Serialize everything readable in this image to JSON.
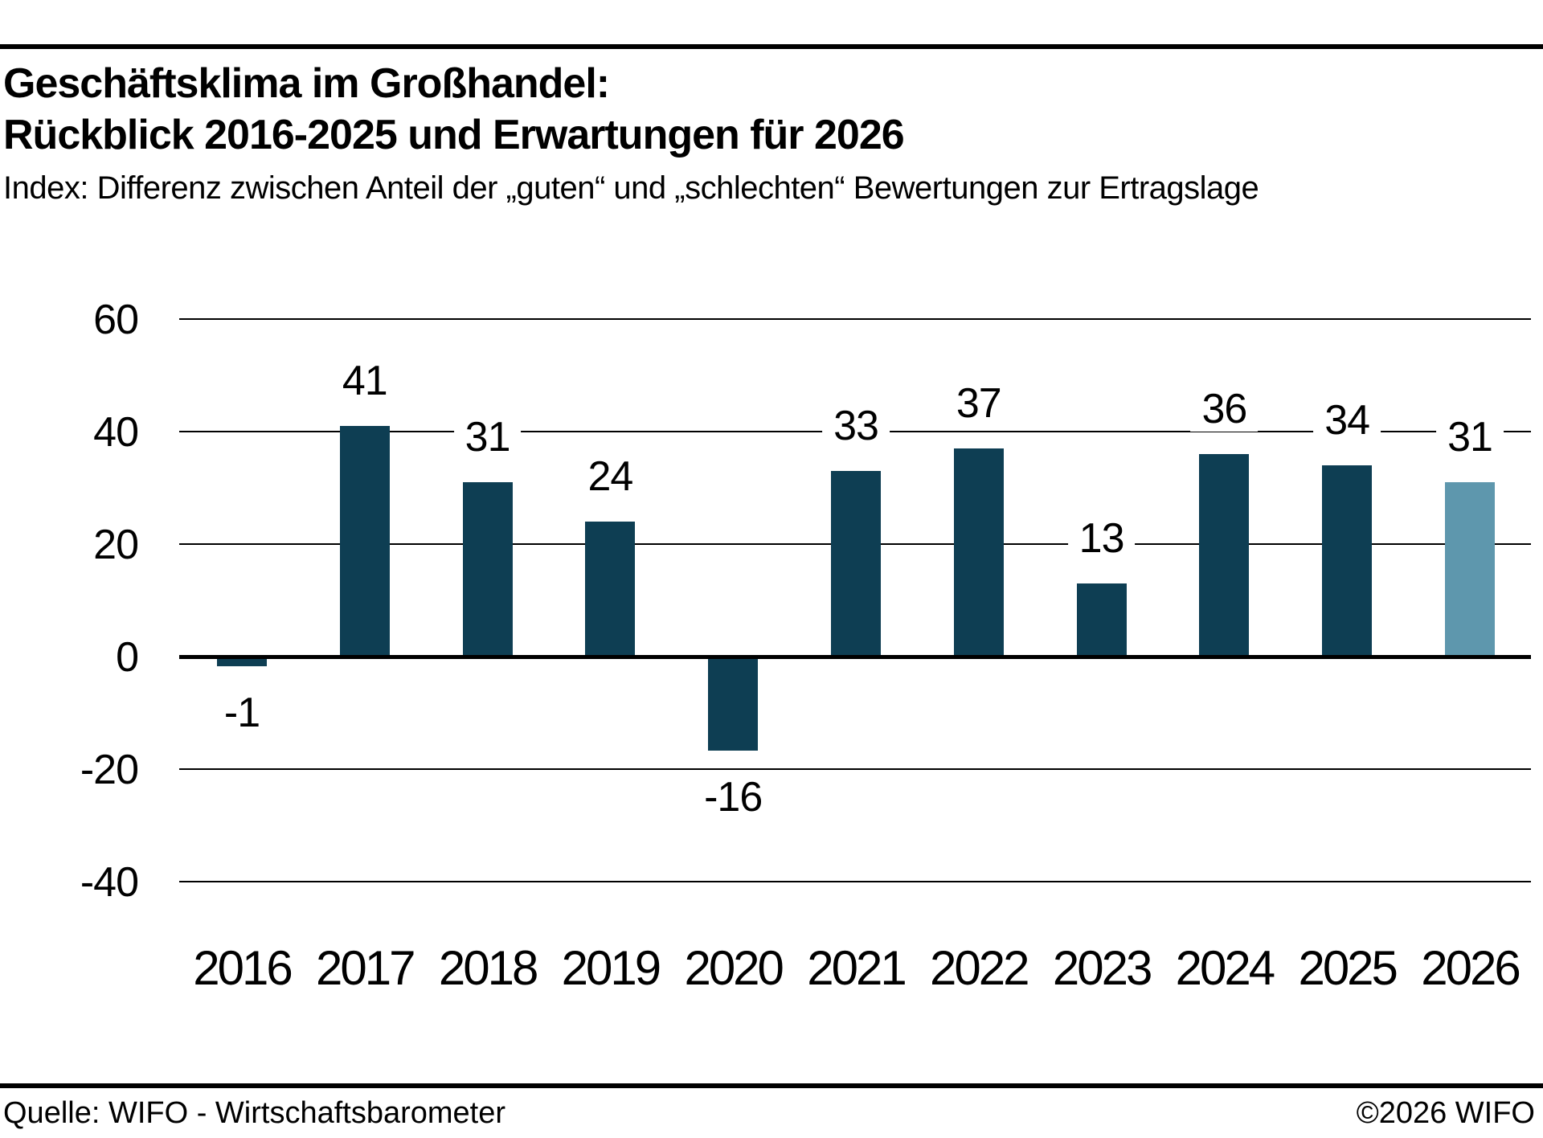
{
  "header": {
    "title_line1": "Geschäftsklima im Großhandel:",
    "title_line2": "Rückblick 2016-2025 und Erwartungen für 2026",
    "subtitle": "Index: Differenz zwischen Anteil der „guten“ und „schlechten“ Bewertungen zur Ertragslage"
  },
  "footer": {
    "source": "Quelle: WIFO - Wirtschaftsbarometer",
    "copyright": "©2026 WIFO"
  },
  "colors": {
    "bar_default": "#0e3e53",
    "bar_forecast": "#5e97ad",
    "axis": "#000000",
    "background": "#ffffff"
  },
  "chart_data": {
    "type": "bar",
    "title": "Geschäftsklima im Großhandel: Rückblick 2016-2025 und Erwartungen für 2026",
    "subtitle": "Index: Differenz zwischen Anteil der „guten“ und „schlechten“ Bewertungen zur Ertragslage",
    "categories": [
      "2016",
      "2017",
      "2018",
      "2019",
      "2020",
      "2021",
      "2022",
      "2023",
      "2024",
      "2025",
      "2026"
    ],
    "values": [
      -1,
      41,
      31,
      24,
      -16,
      33,
      37,
      13,
      36,
      34,
      31
    ],
    "forecast_index": 10,
    "y_ticks": [
      60,
      40,
      20,
      0,
      -20,
      -40
    ],
    "gridline_values": [
      60,
      40,
      20,
      -20,
      -40
    ],
    "ylim": [
      -40,
      60
    ],
    "xlabel": "",
    "ylabel": "",
    "grid": true,
    "legend": false
  }
}
